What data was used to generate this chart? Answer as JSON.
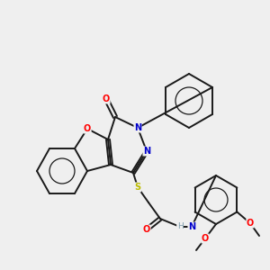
{
  "background_color": "#efefef",
  "bond_color": "#1a1a1a",
  "atom_colors": {
    "O": "#ff0000",
    "N": "#0000cc",
    "S": "#bbbb00",
    "H": "#7a9aaa",
    "C": "#1a1a1a"
  }
}
